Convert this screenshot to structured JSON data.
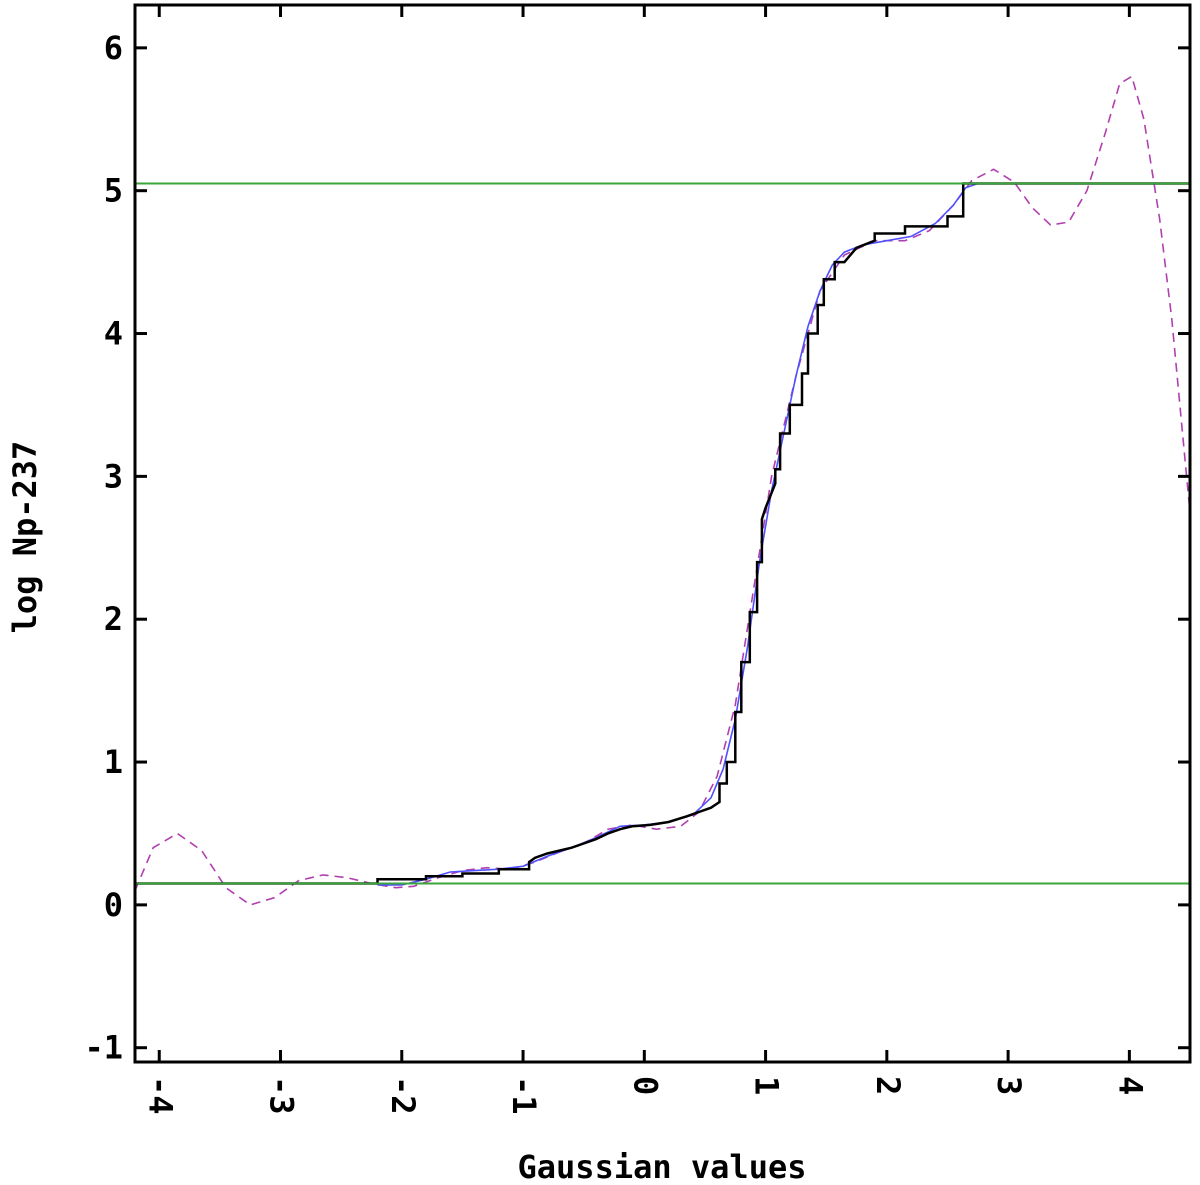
{
  "chart_data": {
    "type": "line",
    "xlabel": "Gaussian values",
    "ylabel": "log Np-237",
    "xlim": [
      -4.2,
      4.5
    ],
    "ylim": [
      -1.1,
      6.3
    ],
    "x_ticks": [
      -4,
      -3,
      -2,
      -1,
      0,
      1,
      2,
      3,
      4
    ],
    "y_ticks": [
      -1,
      0,
      1,
      2,
      3,
      4,
      5,
      6
    ],
    "x_tick_labels": [
      "-4",
      "-3",
      "-2",
      "-1",
      "0",
      "1",
      "2",
      "3",
      "4"
    ],
    "y_tick_labels": [
      "-1",
      "0",
      "1",
      "2",
      "3",
      "4",
      "5",
      "6"
    ],
    "grid": false,
    "legend": "none",
    "horizontal_lines": [
      {
        "y": 5.05,
        "color": "#3aa53a"
      },
      {
        "y": 0.15,
        "color": "#3aa53a"
      }
    ],
    "series": [
      {
        "style": "dashed",
        "color": "#b040b0",
        "points": [
          [
            -4.2,
            0.1
          ],
          [
            -4.05,
            0.4
          ],
          [
            -3.85,
            0.5
          ],
          [
            -3.65,
            0.38
          ],
          [
            -3.45,
            0.12
          ],
          [
            -3.25,
            0.0
          ],
          [
            -3.05,
            0.05
          ],
          [
            -2.85,
            0.17
          ],
          [
            -2.65,
            0.21
          ],
          [
            -2.45,
            0.19
          ],
          [
            -2.25,
            0.15
          ],
          [
            -2.05,
            0.12
          ],
          [
            -1.9,
            0.13
          ],
          [
            -1.7,
            0.19
          ],
          [
            -1.5,
            0.24
          ],
          [
            -1.3,
            0.26
          ],
          [
            -1.1,
            0.25
          ],
          [
            -0.9,
            0.3
          ],
          [
            -0.7,
            0.37
          ],
          [
            -0.5,
            0.43
          ],
          [
            -0.3,
            0.53
          ],
          [
            -0.1,
            0.56
          ],
          [
            0.1,
            0.53
          ],
          [
            0.3,
            0.55
          ],
          [
            0.45,
            0.65
          ],
          [
            0.6,
            0.9
          ],
          [
            0.75,
            1.4
          ],
          [
            0.9,
            2.2
          ],
          [
            1.05,
            3.0
          ],
          [
            1.25,
            3.7
          ],
          [
            1.45,
            4.3
          ],
          [
            1.65,
            4.55
          ],
          [
            1.9,
            4.65
          ],
          [
            2.15,
            4.65
          ],
          [
            2.35,
            4.72
          ],
          [
            2.55,
            4.9
          ],
          [
            2.7,
            5.07
          ],
          [
            2.88,
            5.15
          ],
          [
            3.05,
            5.06
          ],
          [
            3.2,
            4.88
          ],
          [
            3.35,
            4.76
          ],
          [
            3.5,
            4.78
          ],
          [
            3.65,
            5.0
          ],
          [
            3.8,
            5.4
          ],
          [
            3.92,
            5.75
          ],
          [
            4.02,
            5.8
          ],
          [
            4.12,
            5.5
          ],
          [
            4.25,
            4.8
          ],
          [
            4.35,
            4.1
          ],
          [
            4.45,
            3.2
          ],
          [
            4.5,
            2.75
          ]
        ]
      },
      {
        "style": "solid",
        "color": "#5050ff",
        "points": [
          [
            -2.2,
            0.14
          ],
          [
            -2.0,
            0.14
          ],
          [
            -1.8,
            0.18
          ],
          [
            -1.6,
            0.23
          ],
          [
            -1.4,
            0.24
          ],
          [
            -1.2,
            0.25
          ],
          [
            -1.0,
            0.27
          ],
          [
            -0.8,
            0.34
          ],
          [
            -0.6,
            0.4
          ],
          [
            -0.4,
            0.47
          ],
          [
            -0.2,
            0.55
          ],
          [
            0.0,
            0.56
          ],
          [
            0.2,
            0.58
          ],
          [
            0.4,
            0.63
          ],
          [
            0.55,
            0.75
          ],
          [
            0.65,
            0.95
          ],
          [
            0.75,
            1.3
          ],
          [
            0.85,
            1.8
          ],
          [
            0.95,
            2.4
          ],
          [
            1.05,
            2.9
          ],
          [
            1.15,
            3.3
          ],
          [
            1.25,
            3.7
          ],
          [
            1.35,
            4.05
          ],
          [
            1.45,
            4.3
          ],
          [
            1.55,
            4.48
          ],
          [
            1.65,
            4.57
          ],
          [
            1.8,
            4.62
          ],
          [
            2.0,
            4.65
          ],
          [
            2.2,
            4.68
          ],
          [
            2.4,
            4.77
          ],
          [
            2.55,
            4.9
          ],
          [
            2.65,
            5.02
          ],
          [
            2.75,
            5.05
          ]
        ]
      },
      {
        "style": "step",
        "color": "#000000",
        "points": [
          [
            -4.2,
            0.15
          ],
          [
            -2.2,
            0.15
          ],
          [
            -2.2,
            0.18
          ],
          [
            -1.8,
            0.18
          ],
          [
            -1.8,
            0.2
          ],
          [
            -1.5,
            0.2
          ],
          [
            -1.5,
            0.22
          ],
          [
            -1.2,
            0.22
          ],
          [
            -1.2,
            0.25
          ],
          [
            -0.95,
            0.25
          ],
          [
            -0.95,
            0.3
          ],
          [
            -0.9,
            0.33
          ],
          [
            -0.8,
            0.36
          ],
          [
            -0.6,
            0.4
          ],
          [
            -0.5,
            0.43
          ],
          [
            -0.4,
            0.46
          ],
          [
            -0.3,
            0.5
          ],
          [
            -0.2,
            0.53
          ],
          [
            -0.1,
            0.55
          ],
          [
            0.05,
            0.56
          ],
          [
            0.2,
            0.58
          ],
          [
            0.35,
            0.62
          ],
          [
            0.45,
            0.65
          ],
          [
            0.55,
            0.68
          ],
          [
            0.62,
            0.72
          ],
          [
            0.62,
            0.85
          ],
          [
            0.68,
            0.85
          ],
          [
            0.68,
            1.0
          ],
          [
            0.75,
            1.0
          ],
          [
            0.75,
            1.35
          ],
          [
            0.8,
            1.35
          ],
          [
            0.8,
            1.7
          ],
          [
            0.87,
            1.7
          ],
          [
            0.87,
            2.05
          ],
          [
            0.93,
            2.05
          ],
          [
            0.93,
            2.4
          ],
          [
            0.97,
            2.4
          ],
          [
            0.97,
            2.7
          ],
          [
            1.0,
            2.78
          ],
          [
            1.08,
            2.95
          ],
          [
            1.08,
            3.05
          ],
          [
            1.12,
            3.05
          ],
          [
            1.12,
            3.3
          ],
          [
            1.2,
            3.3
          ],
          [
            1.2,
            3.5
          ],
          [
            1.3,
            3.5
          ],
          [
            1.3,
            3.72
          ],
          [
            1.35,
            3.72
          ],
          [
            1.35,
            4.0
          ],
          [
            1.43,
            4.0
          ],
          [
            1.43,
            4.2
          ],
          [
            1.48,
            4.2
          ],
          [
            1.48,
            4.38
          ],
          [
            1.57,
            4.38
          ],
          [
            1.57,
            4.5
          ],
          [
            1.65,
            4.5
          ],
          [
            1.75,
            4.6
          ],
          [
            1.9,
            4.65
          ],
          [
            1.9,
            4.7
          ],
          [
            2.15,
            4.7
          ],
          [
            2.15,
            4.75
          ],
          [
            2.5,
            4.75
          ],
          [
            2.5,
            4.82
          ],
          [
            2.63,
            4.82
          ],
          [
            2.63,
            5.05
          ],
          [
            4.5,
            5.05
          ]
        ]
      }
    ]
  }
}
